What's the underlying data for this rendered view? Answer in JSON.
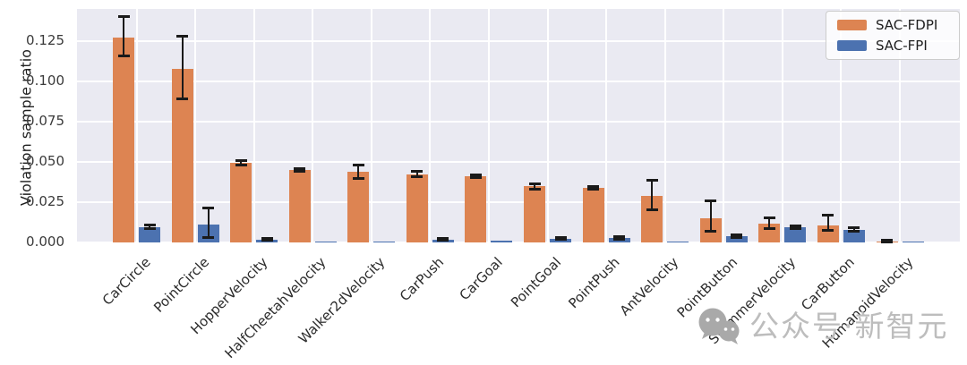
{
  "chart_data": {
    "type": "bar",
    "title": "",
    "xlabel": "",
    "ylabel": "Violation sample ratio",
    "grid": true,
    "plot_background": "#eaeaf2",
    "grid_color": "#ffffff",
    "errorbar_color": "#1a1a1a",
    "legend_position": "upper right",
    "ylim": [
      0,
      0.145
    ],
    "yticks": {
      "labels": [
        "0.000",
        "0.025",
        "0.050",
        "0.075",
        "0.100",
        "0.125"
      ],
      "values": [
        0.0,
        0.025,
        0.05,
        0.075,
        0.1,
        0.125
      ]
    },
    "categories": [
      "CarCircle",
      "PointCircle",
      "HopperVelocity",
      "HalfCheetahVelocity",
      "Walker2dVelocity",
      "CarPush",
      "CarGoal",
      "PointGoal",
      "PointPush",
      "AntVelocity",
      "PointButton",
      "SwimmerVelocity",
      "CarButton",
      "HumanoidVelocity"
    ],
    "series": [
      {
        "name": "SAC-FDPI",
        "color": "#dd8452",
        "values": [
          0.1275,
          0.1078,
          0.0494,
          0.045,
          0.0438,
          0.0422,
          0.0413,
          0.0348,
          0.0338,
          0.0287,
          0.0148,
          0.0117,
          0.0107,
          0.0005
        ],
        "err_low": [
          0.116,
          0.0894,
          0.0483,
          0.0442,
          0.04,
          0.0406,
          0.0404,
          0.0332,
          0.0328,
          0.0204,
          0.0071,
          0.0085,
          0.0074,
          0.0002
        ],
        "err_high": [
          0.1405,
          0.1283,
          0.0506,
          0.0458,
          0.0478,
          0.0441,
          0.0421,
          0.0363,
          0.0348,
          0.0385,
          0.0256,
          0.0154,
          0.0167,
          0.0012
        ]
      },
      {
        "name": "SAC-FPI",
        "color": "#4c72b0",
        "values": [
          0.0094,
          0.0113,
          0.0017,
          0.0006,
          0.0005,
          0.0019,
          0.0011,
          0.0023,
          0.0028,
          0.0007,
          0.0037,
          0.0093,
          0.0079,
          0.0004
        ],
        "err_low": [
          0.0085,
          0.0033,
          0.0012,
          0.0003,
          0.0003,
          0.0014,
          0.0008,
          0.0018,
          0.0022,
          0.0004,
          0.0028,
          0.0086,
          0.0068,
          0.0002
        ],
        "err_high": [
          0.0106,
          0.0213,
          0.0023,
          0.001,
          0.0008,
          0.0024,
          0.0015,
          0.0029,
          0.0034,
          0.0012,
          0.0047,
          0.0101,
          0.009,
          0.0007
        ]
      }
    ]
  },
  "legend": {
    "items": [
      {
        "label": "SAC-FDPI",
        "color": "#dd8452"
      },
      {
        "label": "SAC-FPI",
        "color": "#4c72b0"
      }
    ]
  },
  "watermark": {
    "icon": "wechat-icon",
    "text": "公众号·新智元"
  }
}
